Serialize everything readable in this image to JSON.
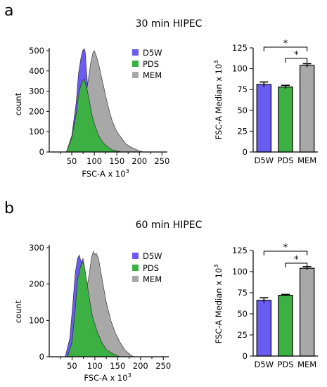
{
  "colors": {
    "D5W": "#6a5cf0",
    "PDS": "#3cb043",
    "MEM": "#a8a8a8",
    "axis": "#000000"
  },
  "panels": [
    {
      "letter": "a",
      "title": "30 min HIPEC",
      "histogram": {
        "xlabel": "FSC-A x 10",
        "xlabel_sup": "3",
        "ylabel": "count",
        "xlim": [
          0,
          262
        ],
        "ylim": [
          0,
          500
        ],
        "xticks": [
          50,
          100,
          150,
          200,
          250
        ],
        "yticks": [
          0,
          100,
          200,
          300,
          400,
          500
        ],
        "legend": [
          "D5W",
          "PDS",
          "MEM"
        ]
      },
      "bar": {
        "ylabel": "FSC-A Median x 10",
        "ylabel_sup": "3",
        "ylim": [
          0,
          125
        ],
        "yticks": [
          0,
          25,
          50,
          75,
          100,
          125
        ],
        "star": "*"
      }
    },
    {
      "letter": "b",
      "title": "60 min HIPEC",
      "histogram": {
        "xlabel": "FSC-A x 10",
        "xlabel_sup": "3",
        "ylabel": "count",
        "xlim": [
          0,
          262
        ],
        "ylim": [
          0,
          300
        ],
        "xticks": [
          50,
          100,
          150,
          200,
          250
        ],
        "yticks": [
          0,
          100,
          200,
          300
        ],
        "legend": [
          "D5W",
          "PDS",
          "MEM"
        ]
      },
      "bar": {
        "ylabel": "FSC-A Median x 10",
        "ylabel_sup": "3",
        "ylim": [
          0,
          125
        ],
        "yticks": [
          0,
          25,
          50,
          75,
          100,
          125
        ],
        "star": "*"
      }
    }
  ],
  "chart_data": [
    {
      "type": "area",
      "panel": "a",
      "xlim": [
        0,
        262
      ],
      "ylim": [
        0,
        500
      ],
      "series": [
        {
          "name": "D5W",
          "x": [
            38,
            50,
            60,
            65,
            70,
            74,
            78,
            80,
            85,
            90,
            95,
            100,
            110,
            120,
            130,
            140,
            150,
            160
          ],
          "y": [
            0,
            80,
            250,
            390,
            460,
            500,
            510,
            490,
            330,
            210,
            140,
            100,
            60,
            35,
            20,
            10,
            5,
            0
          ]
        },
        {
          "name": "PDS",
          "x": [
            38,
            50,
            60,
            65,
            70,
            74,
            78,
            80,
            85,
            90,
            95,
            100,
            110,
            120,
            130,
            140,
            150,
            160
          ],
          "y": [
            0,
            70,
            190,
            280,
            330,
            350,
            360,
            340,
            300,
            240,
            180,
            140,
            80,
            45,
            25,
            10,
            5,
            0
          ]
        },
        {
          "name": "MEM",
          "x": [
            40,
            55,
            65,
            75,
            85,
            92,
            97,
            100,
            105,
            110,
            120,
            130,
            140,
            150,
            160,
            170,
            180,
            190,
            200,
            210
          ],
          "y": [
            0,
            40,
            120,
            200,
            330,
            440,
            490,
            500,
            470,
            430,
            330,
            230,
            150,
            100,
            70,
            40,
            25,
            15,
            5,
            0
          ]
        }
      ],
      "bars": {
        "categories": [
          "D5W",
          "PDS",
          "MEM"
        ],
        "values": [
          81,
          78,
          104
        ],
        "errors": [
          3,
          2,
          2
        ],
        "significance": [
          [
            "D5W",
            "MEM"
          ],
          [
            "PDS",
            "MEM"
          ]
        ]
      }
    },
    {
      "type": "area",
      "panel": "b",
      "xlim": [
        0,
        262
      ],
      "ylim": [
        0,
        300
      ],
      "series": [
        {
          "name": "D5W",
          "x": [
            35,
            45,
            52,
            57,
            62,
            66,
            70,
            74,
            78,
            82,
            88,
            95,
            105,
            115,
            125,
            140,
            150
          ],
          "y": [
            0,
            50,
            150,
            230,
            270,
            280,
            260,
            270,
            240,
            200,
            140,
            90,
            50,
            25,
            12,
            5,
            0
          ]
        },
        {
          "name": "PDS",
          "x": [
            40,
            50,
            57,
            62,
            67,
            70,
            73,
            77,
            82,
            88,
            95,
            105,
            115,
            125,
            140,
            155
          ],
          "y": [
            0,
            40,
            130,
            210,
            240,
            255,
            260,
            250,
            210,
            160,
            110,
            70,
            40,
            20,
            8,
            0
          ]
        },
        {
          "name": "MEM",
          "x": [
            45,
            60,
            70,
            80,
            88,
            93,
            97,
            100,
            103,
            108,
            115,
            125,
            135,
            145,
            155,
            165,
            175,
            185
          ],
          "y": [
            0,
            50,
            110,
            170,
            230,
            275,
            290,
            280,
            285,
            270,
            220,
            150,
            100,
            65,
            40,
            20,
            8,
            0
          ]
        }
      ],
      "bars": {
        "categories": [
          "D5W",
          "PDS",
          "MEM"
        ],
        "values": [
          66,
          72,
          104
        ],
        "errors": [
          3,
          1,
          2
        ],
        "significance": [
          [
            "D5W",
            "MEM"
          ],
          [
            "PDS",
            "MEM"
          ]
        ]
      }
    }
  ]
}
